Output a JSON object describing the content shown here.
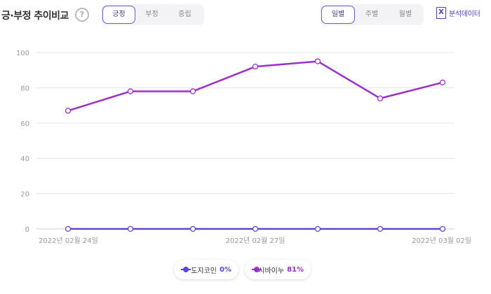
{
  "header": {
    "title": "긍·부정 추이비교",
    "help_glyph": "?",
    "sentiment_tabs": [
      {
        "label": "긍정",
        "active": true
      },
      {
        "label": "부정",
        "active": false
      },
      {
        "label": "중립",
        "active": false
      }
    ],
    "period_tabs": [
      {
        "label": "일별",
        "active": true
      },
      {
        "label": "주별",
        "active": false
      },
      {
        "label": "월별",
        "active": false
      }
    ],
    "export": {
      "icon": "excel-icon",
      "glyph": "X",
      "label": "분석데이터"
    }
  },
  "chart_data": {
    "type": "line",
    "x": [
      "2022-02-24",
      "2022-02-25",
      "2022-02-26",
      "2022-02-27",
      "2022-02-28",
      "2022-03-01",
      "2022-03-02"
    ],
    "xtick_labels": [
      "2022년 02월 24일",
      "",
      "",
      "2022년 02월 27일",
      "",
      "",
      "2022년 03월 02일"
    ],
    "ylim": [
      0,
      100
    ],
    "yticks": [
      0,
      20,
      40,
      60,
      80,
      100
    ],
    "grid": true,
    "legend_position": "bottom-center",
    "series": [
      {
        "name": "도지코인",
        "percent": "0%",
        "color": "#5b47d6",
        "values": [
          0,
          0,
          0,
          0,
          0,
          0,
          0
        ]
      },
      {
        "name": "시바이누",
        "percent": "81%",
        "color": "#9b30c9",
        "values": [
          67,
          78,
          78,
          92,
          95,
          74,
          83
        ]
      }
    ]
  }
}
